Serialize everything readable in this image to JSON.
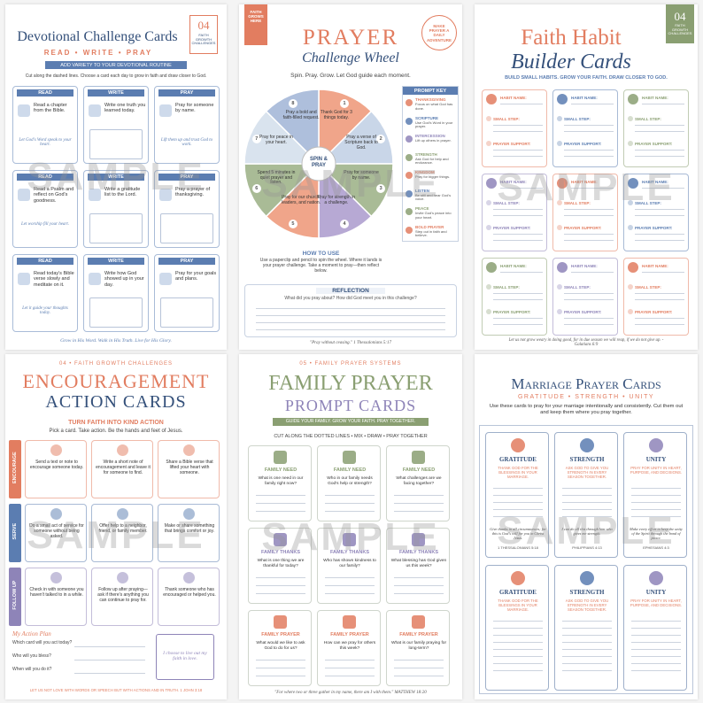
{
  "watermark": "SAMPLE",
  "devotional": {
    "title": "Devotional Challenge Cards",
    "badge": {
      "number": "04",
      "text": "FAITH GROWTH CHALLENGES"
    },
    "subtitle": "READ • WRITE • PRAY",
    "ribbon": "ADD VARIETY TO YOUR DEVOTIONAL ROUTINE",
    "instruction": "Cut along the dashed lines. Choose a card each day to grow in faith and draw closer to God.",
    "cards": [
      {
        "label": "READ",
        "text": "Read a chapter from the Bible.",
        "note": "Let God's Word speak to your heart."
      },
      {
        "label": "WRITE",
        "text": "Write one truth you learned today."
      },
      {
        "label": "PRAY",
        "text": "Pray for someone by name.",
        "note": "Lift them up and trust God to work."
      },
      {
        "label": "READ",
        "text": "Read a Psalm and reflect on God's goodness.",
        "note": "Let worship fill your heart."
      },
      {
        "label": "WRITE",
        "text": "Write a gratitude list to the Lord."
      },
      {
        "label": "PRAY",
        "text": "Pray a prayer of thanksgiving."
      },
      {
        "label": "READ",
        "text": "Read today's Bible verse slowly and meditate on it.",
        "note": "Let it guide your thoughts today."
      },
      {
        "label": "WRITE",
        "text": "Write how God showed up in your day."
      },
      {
        "label": "PRAY",
        "text": "Pray for your goals and plans."
      }
    ],
    "footer": "Grow in His Word. Walk in His Truth. Live for His Glory."
  },
  "wheel": {
    "ribbon": "FAITH GROWS HERE",
    "title": "PRAYER",
    "subtitle": "Challenge Wheel",
    "badge": "MAKE PRAYER A DAILY ADVENTURE",
    "tagline": "Spin. Pray. Grow. Let God guide each moment.",
    "center": "SPIN & PRAY",
    "segments": [
      {
        "number": 1,
        "text": "Thank God for 3 things today."
      },
      {
        "number": 2,
        "text": "Pray a verse of Scripture back to God."
      },
      {
        "number": 3,
        "text": "Pray for someone by name."
      },
      {
        "number": 4,
        "text": "Pray for strength in a challenge."
      },
      {
        "number": 5,
        "text": "Pray for our church, leaders, and nation."
      },
      {
        "number": 6,
        "text": "Spend 5 minutes in quiet prayer and listen."
      },
      {
        "number": 7,
        "text": "Pray for peace in your heart."
      },
      {
        "number": 8,
        "text": "Pray a bold and faith-filled request."
      }
    ],
    "key": {
      "title": "PROMPT KEY",
      "items": [
        {
          "name": "THANKSGIVING",
          "text": "Focus on what God has done."
        },
        {
          "name": "SCRIPTURE",
          "text": "Use God's Word in your prayer."
        },
        {
          "name": "INTERCESSION",
          "text": "Lift up others in prayer."
        },
        {
          "name": "STRENGTH",
          "text": "Ask God for help and endurance."
        },
        {
          "name": "KINGDOM",
          "text": "Pray for bigger things."
        },
        {
          "name": "LISTEN",
          "text": "Be still and hear God's voice."
        },
        {
          "name": "PEACE",
          "text": "Invite God's peace into your heart."
        },
        {
          "name": "BOLD PRAYER",
          "text": "Step out in faith and believe."
        }
      ]
    },
    "how_to": {
      "title": "HOW TO USE",
      "text": "Use a paperclip and pencil to spin the wheel. Where it lands is your prayer challenge. Take a moment to pray—then reflect below."
    },
    "reflection": {
      "title": "REFLECTION",
      "prompt": "What did you pray about? How did God meet you in this challenge?"
    },
    "footer": "\"Pray without ceasing.\" 1 Thessalonians 5:17"
  },
  "habit": {
    "badge": {
      "number": "04",
      "text": "FAITH GROWTH CHALLENGES"
    },
    "title": "Faith Habit",
    "subtitle": "Builder Cards",
    "tagline": "BUILD SMALL HABITS. GROW YOUR FAITH. DRAW CLOSER TO GOD.",
    "fields": [
      "HABIT NAME:",
      "SMALL STEP:",
      "PRAYER SUPPORT:"
    ],
    "footer": "Let us not grow weary in doing good, for in due season we will reap, if we do not give up. - Galatians 6:9"
  },
  "encouragement": {
    "kicker": "04 • FAITH GROWTH CHALLENGES",
    "title": "ENCOURAGEMENT",
    "subtitle": "ACTION CARDS",
    "tagline": "TURN FAITH INTO KIND ACTION",
    "instruction": "Pick a card. Take action. Be the hands and feet of Jesus.",
    "rows": [
      {
        "label": "ENCOURAGE",
        "cards": [
          "Send a text or note to encourage someone today.",
          "Write a short note of encouragement and leave it for someone to find.",
          "Share a Bible verse that lifted your heart with someone."
        ]
      },
      {
        "label": "SERVE",
        "cards": [
          "Do a small act of service for someone without being asked.",
          "Offer help to a neighbor, friend, or family member.",
          "Make or share something that brings comfort or joy."
        ]
      },
      {
        "label": "FOLLOW UP",
        "cards": [
          "Check in with someone you haven't talked to in a while.",
          "Follow up after praying—ask if there's anything you can continue to pray for.",
          "Thank someone who has encouraged or helped you."
        ]
      }
    ],
    "plan": {
      "title": "My Action Plan",
      "questions": [
        "Which card will you act today?",
        "Who will you bless?",
        "When will you do it?"
      ],
      "pledge": "I choose to live out my faith in love."
    },
    "footer": "LET US NOT LOVE WITH WORDS OR SPEECH BUT WITH ACTIONS AND IN TRUTH. 1 JOHN 3:18"
  },
  "family": {
    "kicker": "05 • FAMILY PRAYER SYSTEMS",
    "title": "FAMILY PRAYER",
    "subtitle": "PROMPT CARDS",
    "ribbon": "GUIDE YOUR FAMILY. GROW YOUR FAITH. PRAY TOGETHER.",
    "instruction": "CUT ALONG THE DOTTED LINES • MIX • DRAW • PRAY TOGETHER",
    "rows": [
      {
        "label": "FAMILY NEED",
        "questions": [
          "What is one need in our family right now?",
          "Who in our family needs God's help or strength?",
          "What challenges are we facing together?"
        ]
      },
      {
        "label": "FAMILY THANKS",
        "questions": [
          "What is one thing we are thankful for today?",
          "Who has shown kindness to our family?",
          "What blessing has God given us this week?"
        ]
      },
      {
        "label": "FAMILY PRAYER",
        "questions": [
          "What would we like to ask God to do for us?",
          "How can we pray for others this week?",
          "What is our family praying for long-term?"
        ]
      }
    ],
    "footer": "\"For where two or three gather in my name, there am I with them.\" MATTHEW 18:20"
  },
  "marriage": {
    "title": "Marriage Prayer Cards",
    "subtitle": "GRATITUDE • STRENGTH • UNITY",
    "intro": "Use these cards to pray for your marriage intentionally and consistently. Cut them out and keep them where you pray together.",
    "cards": [
      {
        "label": "GRATITUDE",
        "prompt": "THANK GOD FOR THE BLESSINGS IN YOUR MARRIAGE.",
        "verse": "Give thanks in all circumstances; for this is God's will for you in Christ Jesus.",
        "reference": "1 THESSALONIANS 5:18"
      },
      {
        "label": "STRENGTH",
        "prompt": "ASK GOD TO GIVE YOU STRENGTH IN EVERY SEASON TOGETHER.",
        "verse": "I can do all this through him who gives me strength.",
        "reference": "PHILIPPIANS 4:13"
      },
      {
        "label": "UNITY",
        "prompt": "PRAY FOR UNITY IN HEART, PURPOSE, AND DECISIONS.",
        "verse": "Make every effort to keep the unity of the Spirit through the bond of peace.",
        "reference": "EPHESIANS 4:3"
      }
    ]
  }
}
